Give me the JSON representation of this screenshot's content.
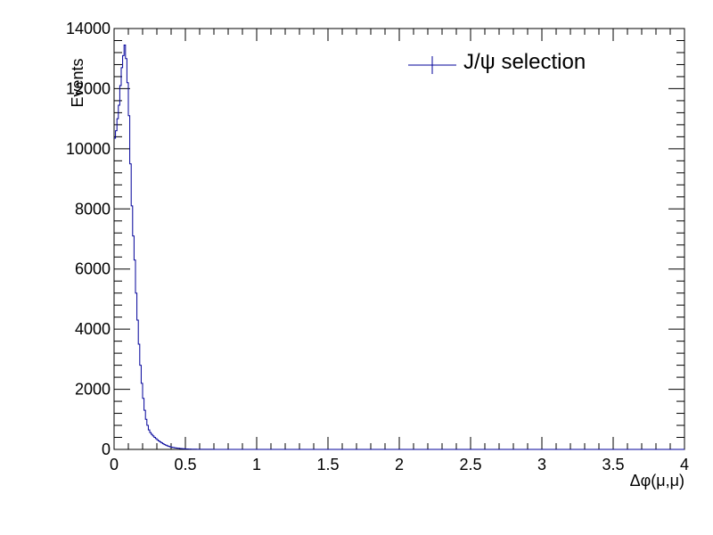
{
  "chart_data": {
    "type": "histogram",
    "xlabel": "Δφ(μ,μ)",
    "ylabel": "Events",
    "xlim": [
      0,
      4
    ],
    "ylim": [
      0,
      14000
    ],
    "x_ticks": [
      "0",
      "0.5",
      "1",
      "1.5",
      "2",
      "2.5",
      "3",
      "3.5",
      "4"
    ],
    "x_tick_values": [
      0,
      0.5,
      1,
      1.5,
      2,
      2.5,
      3,
      3.5,
      4
    ],
    "y_ticks": [
      "0",
      "2000",
      "4000",
      "6000",
      "8000",
      "10000",
      "12000",
      "14000"
    ],
    "y_tick_values": [
      0,
      2000,
      4000,
      6000,
      8000,
      10000,
      12000,
      14000
    ],
    "grid": false,
    "legend_position": "top-right",
    "series": [
      {
        "name": "J/ψ selection",
        "color": "#000099",
        "bin_width": 0.01,
        "bin_start": 0,
        "values": [
          10350,
          10600,
          11000,
          11450,
          12100,
          12700,
          13100,
          13450,
          13000,
          12200,
          11100,
          9500,
          8100,
          7100,
          6300,
          5200,
          4300,
          3500,
          2800,
          2200,
          1700,
          1300,
          1000,
          800,
          650,
          560,
          500,
          450,
          400,
          360,
          320,
          280,
          250,
          220,
          190,
          160,
          140,
          120,
          100,
          85,
          75,
          65,
          55,
          48,
          42,
          36,
          30,
          26,
          22,
          19,
          16,
          14,
          12,
          10,
          9,
          8,
          7,
          6,
          5,
          5,
          4,
          4,
          3,
          3,
          3,
          2,
          2,
          2,
          2,
          1,
          1,
          1,
          1,
          1,
          1,
          1,
          1,
          1,
          1,
          1
        ]
      }
    ]
  }
}
